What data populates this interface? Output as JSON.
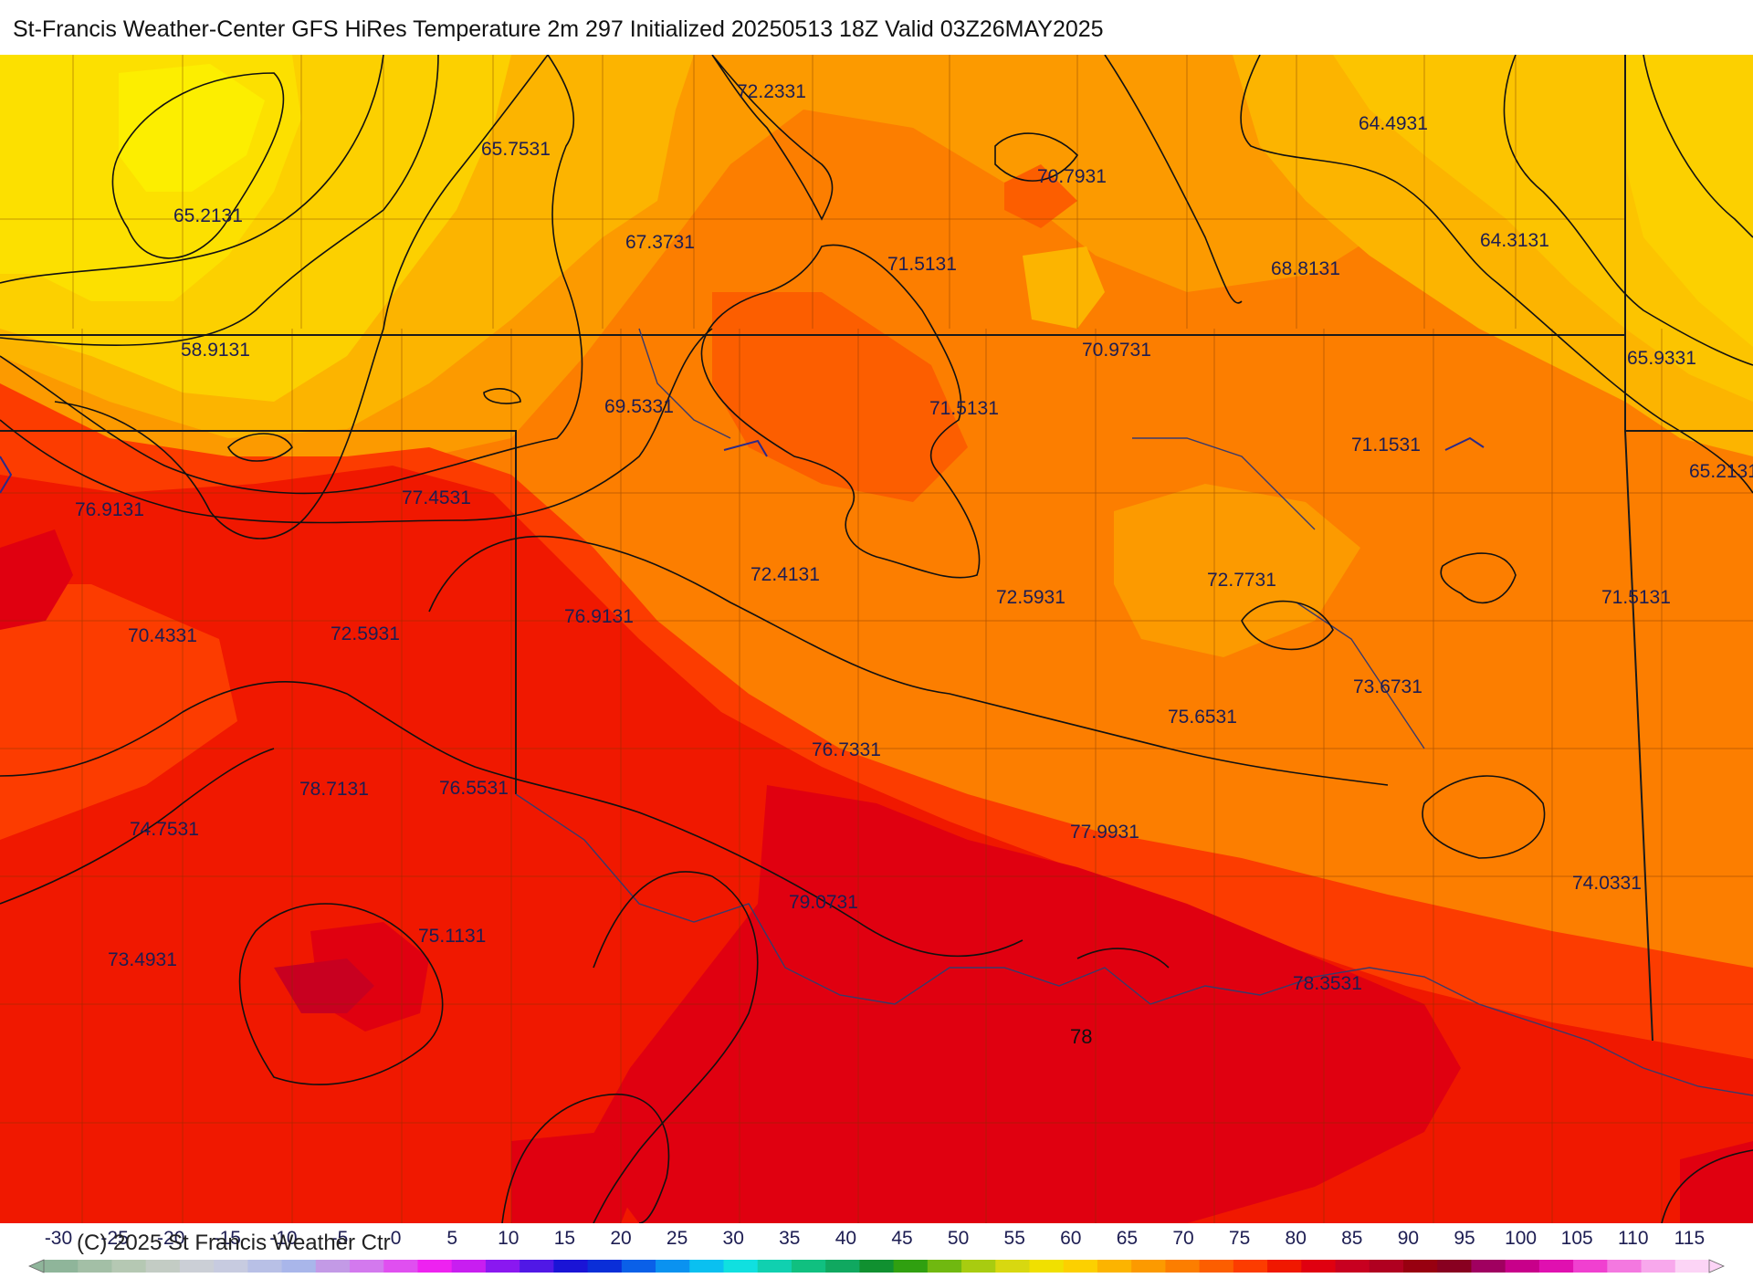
{
  "title": "St-Francis Weather-Center GFS HiRes Temperature 2m  297 Initialized 20250513 18Z Valid 03Z26MAY2025",
  "copyright": "(C) 2025 St Francis Weather Ctr",
  "contour_label": "78",
  "station_values": [
    "72.2331",
    "64.4931",
    "65.7531",
    "70.7931",
    "65.2131",
    "67.3731",
    "71.5131",
    "68.8131",
    "64.3131",
    "58.9131",
    "70.9731",
    "65.9331",
    "69.5331",
    "71.5131",
    "71.1531",
    "65.2131",
    "76.9131",
    "77.4531",
    "72.4131",
    "72.5931",
    "72.7731",
    "71.5131",
    "76.9131",
    "70.4331",
    "72.5931",
    "73.6731",
    "75.6531",
    "76.7331",
    "78.7131",
    "76.5531",
    "74.7531",
    "77.9931",
    "74.0331",
    "79.0731",
    "75.1131",
    "73.4931",
    "78.3531"
  ],
  "colorbar": {
    "ticks": [
      "-30",
      "-25",
      "-20",
      "-15",
      "-10",
      "-5",
      "0",
      "5",
      "10",
      "15",
      "20",
      "25",
      "30",
      "35",
      "40",
      "45",
      "50",
      "55",
      "60",
      "65",
      "70",
      "75",
      "80",
      "85",
      "90",
      "95",
      "100",
      "105",
      "110",
      "115"
    ],
    "colors": [
      "#8fb59a",
      "#a3bfa6",
      "#b5c8b3",
      "#c3ccc4",
      "#cbcfd6",
      "#c7cbe0",
      "#b8c0e6",
      "#a9b6ea",
      "#c39ae6",
      "#d379ee",
      "#e04ff0",
      "#ee22f0",
      "#c81ef0",
      "#8a18f0",
      "#5018e6",
      "#1a14d6",
      "#0a2ed8",
      "#0a60e8",
      "#0a92f0",
      "#0ac0f0",
      "#10e0e0",
      "#10d0b0",
      "#10c080",
      "#10a860",
      "#109030",
      "#30a010",
      "#70b810",
      "#a8cc10",
      "#d8d810",
      "#f0e000",
      "#fcd000",
      "#fcb400",
      "#fc9a00",
      "#fc7e00",
      "#fc5e00",
      "#fc3c00",
      "#f01800",
      "#e00010",
      "#c80020",
      "#b00020",
      "#980010",
      "#880020",
      "#a00060",
      "#c8008a",
      "#e010b0",
      "#f040d0",
      "#f478e0",
      "#f8a8ec",
      "#fcd4f6"
    ]
  }
}
